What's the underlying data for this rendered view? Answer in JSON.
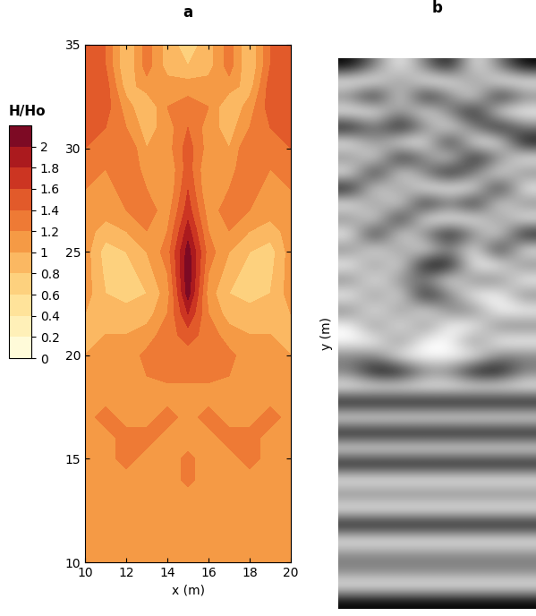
{
  "chart_data": [
    {
      "type": "contour",
      "title": "a",
      "xlabel": "x (m)",
      "x": [
        10,
        11,
        12,
        13,
        14,
        15,
        16,
        17,
        18,
        19,
        20
      ],
      "y": [
        10,
        11,
        12,
        13,
        14,
        15,
        16,
        17,
        18,
        19,
        20,
        21,
        22,
        23,
        24,
        25,
        26,
        27,
        28,
        29,
        30,
        31,
        32,
        33,
        34,
        35
      ],
      "cells": [
        [
          1.1,
          1.1,
          1.1,
          1.1,
          1.1,
          1.1,
          1.1,
          1.1,
          1.1,
          1.1,
          1.1
        ],
        [
          1.1,
          1.1,
          1.1,
          1.1,
          1.1,
          1.1,
          1.1,
          1.1,
          1.1,
          1.1,
          1.1
        ],
        [
          1.1,
          1.1,
          1.1,
          1.1,
          1.1,
          1.1,
          1.1,
          1.1,
          1.1,
          1.1,
          1.1
        ],
        [
          1.1,
          1.1,
          1.1,
          1.1,
          1.1,
          1.1,
          1.1,
          1.1,
          1.1,
          1.1,
          1.1
        ],
        [
          1.1,
          1.1,
          1.1,
          1.1,
          1.1,
          1.25,
          1.1,
          1.1,
          1.1,
          1.1,
          1.1
        ],
        [
          1.1,
          1.1,
          1.3,
          1.1,
          1.1,
          1.25,
          1.1,
          1.1,
          1.3,
          1.1,
          1.1
        ],
        [
          1.1,
          1.1,
          1.3,
          1.3,
          1.1,
          1.1,
          1.1,
          1.3,
          1.3,
          1.1,
          1.1
        ],
        [
          1.1,
          1.3,
          1.1,
          1.1,
          1.3,
          1.1,
          1.3,
          1.1,
          1.1,
          1.3,
          1.1
        ],
        [
          1.1,
          1.1,
          1.1,
          1.15,
          1.1,
          1.1,
          1.1,
          1.15,
          1.1,
          1.1,
          1.1
        ],
        [
          1.1,
          1.1,
          1.1,
          1.2,
          1.25,
          1.25,
          1.25,
          1.2,
          1.1,
          1.1,
          1.1
        ],
        [
          1.0,
          1.1,
          1.1,
          1.25,
          1.3,
          1.3,
          1.3,
          1.25,
          1.1,
          1.1,
          1.0
        ],
        [
          1.0,
          1.0,
          1.0,
          1.1,
          1.3,
          1.5,
          1.3,
          1.1,
          1.0,
          1.0,
          1.0
        ],
        [
          1.0,
          0.9,
          0.9,
          0.9,
          1.2,
          1.8,
          1.2,
          0.9,
          0.9,
          0.9,
          1.0
        ],
        [
          1.1,
          0.8,
          0.7,
          0.8,
          1.1,
          2.1,
          1.1,
          0.8,
          0.7,
          0.8,
          1.1
        ],
        [
          1.1,
          0.75,
          0.7,
          0.9,
          1.2,
          2.15,
          1.2,
          0.9,
          0.7,
          0.75,
          1.1
        ],
        [
          1.1,
          0.7,
          0.8,
          1.0,
          1.3,
          2.1,
          1.3,
          1.0,
          0.8,
          0.7,
          1.1
        ],
        [
          1.1,
          0.9,
          1.0,
          1.2,
          1.2,
          1.9,
          1.2,
          1.2,
          1.0,
          0.9,
          1.1
        ],
        [
          1.1,
          1.1,
          1.2,
          1.3,
          1.1,
          1.7,
          1.1,
          1.3,
          1.2,
          1.1,
          1.1
        ],
        [
          1.2,
          1.1,
          1.3,
          1.2,
          1.0,
          1.6,
          1.0,
          1.2,
          1.3,
          1.1,
          1.2
        ],
        [
          1.3,
          1.2,
          1.4,
          1.1,
          1.0,
          1.5,
          1.0,
          1.1,
          1.4,
          1.2,
          1.3
        ],
        [
          1.4,
          1.3,
          1.4,
          1.0,
          1.1,
          1.5,
          1.1,
          1.0,
          1.4,
          1.3,
          1.4
        ],
        [
          1.5,
          1.4,
          1.2,
          0.9,
          1.1,
          1.4,
          1.1,
          0.9,
          1.2,
          1.4,
          1.5
        ],
        [
          1.6,
          1.5,
          1.1,
          0.8,
          1.2,
          1.3,
          1.2,
          0.8,
          1.1,
          1.5,
          1.6
        ],
        [
          1.6,
          1.5,
          0.9,
          1.1,
          1.1,
          1.1,
          1.1,
          1.1,
          0.9,
          1.5,
          1.6
        ],
        [
          1.6,
          1.4,
          0.8,
          1.3,
          0.9,
          0.8,
          0.9,
          1.3,
          0.8,
          1.4,
          1.6
        ],
        [
          1.6,
          1.4,
          0.8,
          1.3,
          0.9,
          0.7,
          0.9,
          1.3,
          0.8,
          1.4,
          1.6
        ]
      ],
      "xlim": [
        10,
        20
      ],
      "ylim": [
        10,
        35
      ],
      "xticks": [
        10,
        12,
        14,
        16,
        18,
        20
      ],
      "yticks": [
        10,
        15,
        20,
        25,
        30,
        35
      ],
      "colors": [
        "#fffbd9",
        "#fff0b8",
        "#ffe39a",
        "#fdd17e",
        "#fbb862",
        "#f59a45",
        "#ee7a35",
        "#e25a2a",
        "#cc3522",
        "#ab1a1e",
        "#7d0a24"
      ],
      "colorbar": {
        "label": "H/Ho",
        "range": [
          0,
          2.2
        ],
        "levels": [
          0,
          0.2,
          0.4,
          0.6,
          0.8,
          1,
          1.2,
          1.4,
          1.6,
          1.8,
          2,
          2.2
        ],
        "ticks": [
          0,
          0.2,
          0.4,
          0.6,
          0.8,
          1,
          1.2,
          1.4,
          1.6,
          1.8,
          2
        ]
      }
    },
    {
      "type": "image",
      "title": "b",
      "ylabel": "y (m)",
      "tick_labels": false,
      "cells": [
        [
          2,
          1,
          0,
          1,
          2,
          0,
          1,
          2
        ],
        [
          0,
          0,
          1,
          0,
          0,
          1,
          0,
          0
        ],
        [
          1,
          2,
          0,
          2,
          1,
          0,
          2,
          1
        ],
        [
          0,
          0,
          1,
          0,
          1,
          2,
          0,
          0
        ],
        [
          2,
          1,
          2,
          1,
          0,
          1,
          2,
          1
        ],
        [
          0,
          1,
          0,
          0,
          2,
          0,
          0,
          2
        ],
        [
          1,
          0,
          2,
          1,
          0,
          2,
          1,
          0
        ],
        [
          0,
          2,
          0,
          1,
          2,
          1,
          0,
          1
        ],
        [
          2,
          0,
          1,
          0,
          0,
          0,
          2,
          0
        ],
        [
          0,
          1,
          0,
          2,
          1,
          2,
          0,
          1
        ],
        [
          1,
          0,
          2,
          0,
          0,
          0,
          1,
          0
        ],
        [
          0,
          2,
          0,
          1,
          2,
          1,
          0,
          2
        ],
        [
          1,
          0,
          1,
          0,
          1,
          0,
          2,
          0
        ],
        [
          0,
          1,
          0,
          2,
          2,
          0,
          0,
          1
        ],
        [
          1,
          0,
          1,
          1,
          0,
          1,
          1,
          0
        ],
        [
          0,
          1,
          0,
          2,
          1,
          0,
          0,
          1
        ],
        [
          1,
          0,
          1,
          0,
          1,
          1,
          0,
          0
        ],
        [
          0,
          1,
          0,
          1,
          0,
          0,
          1,
          1
        ],
        [
          0,
          0,
          1,
          0,
          0,
          1,
          0,
          0
        ],
        [
          1,
          1,
          0,
          0,
          0,
          0,
          1,
          1
        ],
        [
          1,
          2,
          2,
          1,
          1,
          2,
          2,
          1
        ],
        [
          0,
          0,
          0,
          0,
          0,
          0,
          0,
          0
        ],
        [
          2,
          2,
          2,
          2,
          2,
          2,
          2,
          2
        ],
        [
          0,
          0,
          0,
          0,
          0,
          0,
          0,
          0
        ],
        [
          2,
          2,
          2,
          2,
          2,
          2,
          2,
          2
        ],
        [
          0,
          0,
          0,
          0,
          0,
          0,
          0,
          0
        ],
        [
          2,
          2,
          2,
          2,
          2,
          2,
          2,
          2
        ],
        [
          0,
          0,
          0,
          0,
          0,
          0,
          0,
          0
        ],
        [
          1,
          1,
          1,
          1,
          1,
          1,
          1,
          1
        ],
        [
          0,
          0,
          0,
          0,
          0,
          0,
          0,
          0
        ],
        [
          2,
          2,
          2,
          2,
          2,
          2,
          2,
          2
        ],
        [
          0,
          0,
          0,
          0,
          0,
          0,
          0,
          0
        ],
        [
          1,
          1,
          1,
          1,
          1,
          1,
          1,
          1
        ],
        [
          1,
          1,
          1,
          1,
          1,
          1,
          1,
          1
        ],
        [
          0,
          0,
          0,
          0,
          0,
          0,
          0,
          0
        ],
        [
          2,
          2,
          2,
          2,
          2,
          2,
          2,
          2
        ]
      ]
    }
  ]
}
